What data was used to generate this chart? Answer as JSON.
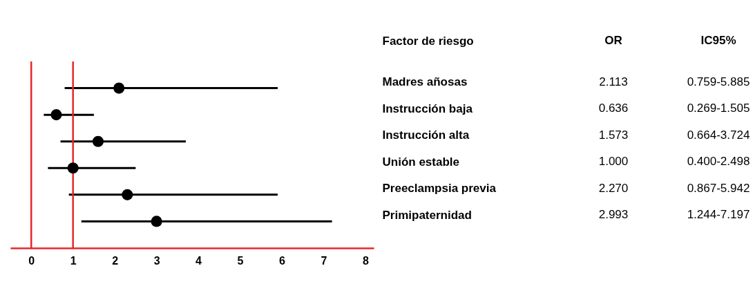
{
  "chart_data": [
    {
      "type": "scatter",
      "orientation": "horizontal",
      "marker": "circle",
      "color": "#000000",
      "ylabel": "Factor de riesgo",
      "categories": [
        "Madres añosas",
        "Instrucción baja",
        "Instrucción alta",
        "Unión estable",
        "Preeclampsia previa",
        "Primipaternidad"
      ],
      "values": [
        2.1,
        0.6,
        1.6,
        1.0,
        2.3,
        3.0
      ],
      "errors": [
        [
          0.8,
          5.9
        ],
        [
          0.3,
          1.5
        ],
        [
          0.7,
          3.7
        ],
        [
          0.4,
          2.5
        ],
        [
          0.9,
          5.9
        ],
        [
          1.2,
          7.2
        ]
      ],
      "xlim": [
        -0.5,
        8.2
      ],
      "xticks": [
        0,
        1,
        2,
        3,
        4,
        5,
        6,
        7,
        8
      ],
      "grid": false,
      "ref_lines": [
        {
          "axis": "x",
          "value": 0,
          "color": "#e8262a"
        },
        {
          "axis": "x",
          "value": 1,
          "color": "#e8262a"
        }
      ]
    },
    {
      "type": "other",
      "annotations": [
        "OR",
        "IC95%",
        "2.113",
        "0.759-5.885",
        "0.636",
        "0.269-1.505",
        "1.573",
        "0.664-3.724",
        "1.000",
        "0.400-2.498",
        "2.270",
        "0.867-5.942",
        "2.993",
        "1.244-7.197"
      ]
    }
  ]
}
